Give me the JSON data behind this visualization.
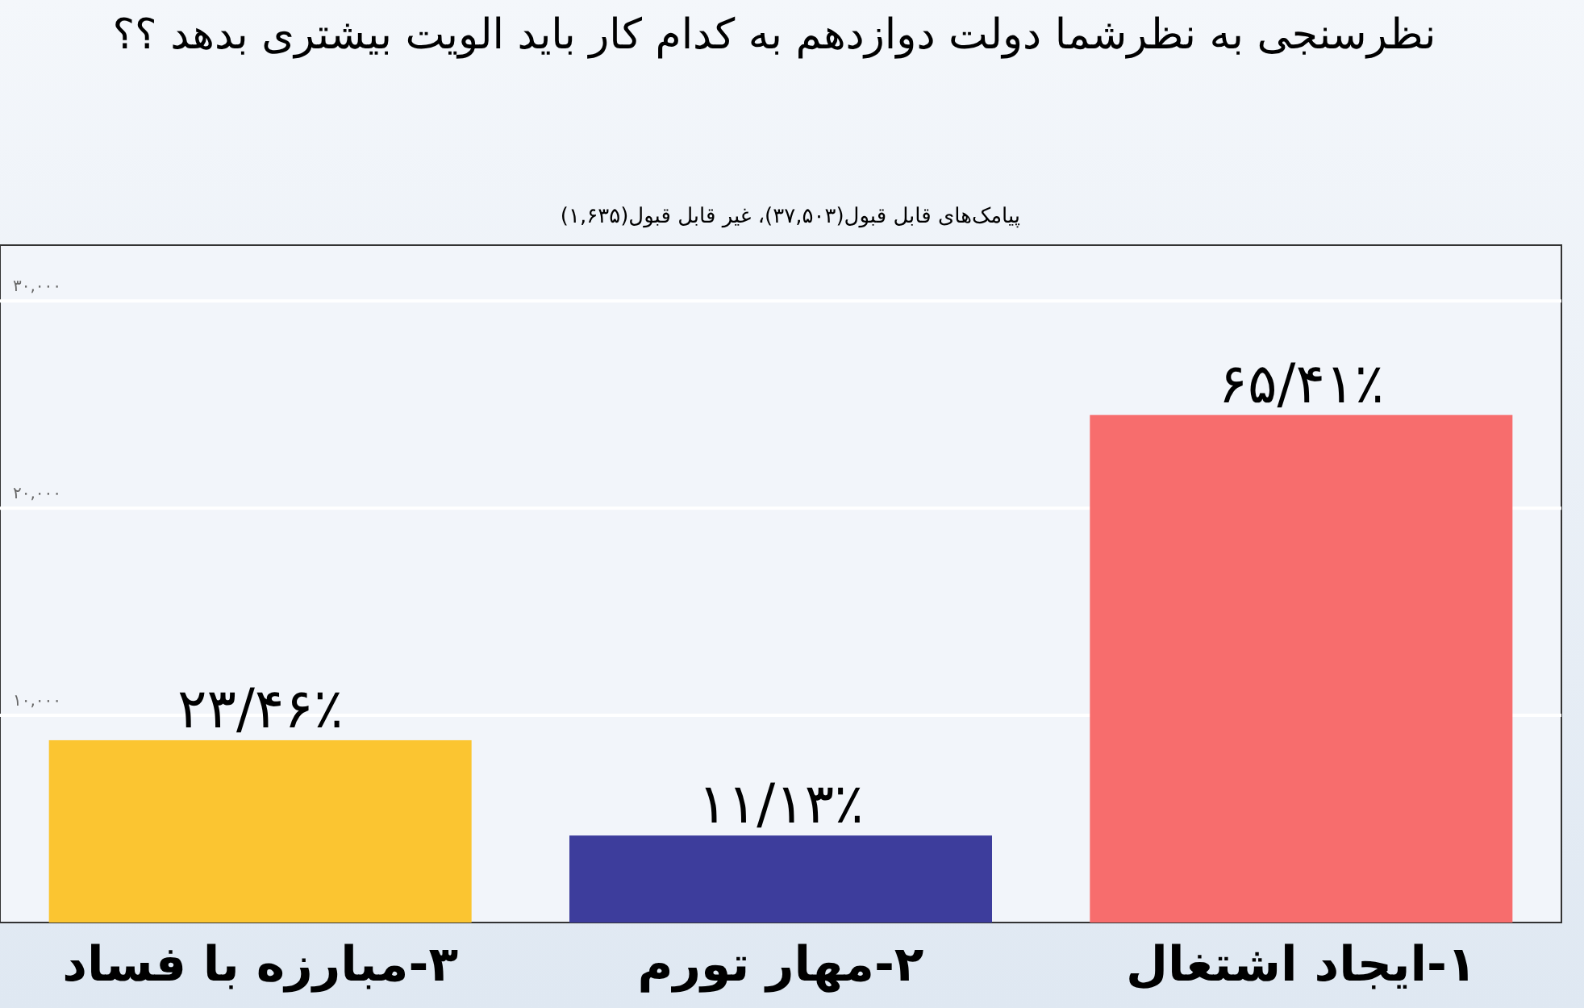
{
  "chart_data": {
    "type": "bar",
    "title": "نظرسنجی به نظرشما دولت دوازدهم به کدام کار باید الویت بیشتری بدهد ؟؟",
    "subtitle": "پیامک‌های قابل قبول(۳۷,۵۰۳)، غیر قابل قبول(۱,۶۳۵)",
    "categories": [
      "۳-مبارزه با فساد",
      "۲-مهار تورم",
      "۱-ایجاد اشتغال"
    ],
    "values": [
      8800,
      4200,
      24500
    ],
    "colors": [
      "#fbc531",
      "#3d3d9c",
      "#f76d6d"
    ],
    "value_labels": [
      "۲۳/۴۶٪",
      "۱۱/۱۳٪",
      "۶۵/۴۱٪"
    ],
    "ylim": [
      0,
      32700
    ],
    "yticks": [
      {
        "value": 10000,
        "label": "۱۰,۰۰۰"
      },
      {
        "value": 20000,
        "label": "۲۰,۰۰۰"
      },
      {
        "value": 30000,
        "label": "۳۰,۰۰۰"
      }
    ],
    "grid": "y"
  }
}
